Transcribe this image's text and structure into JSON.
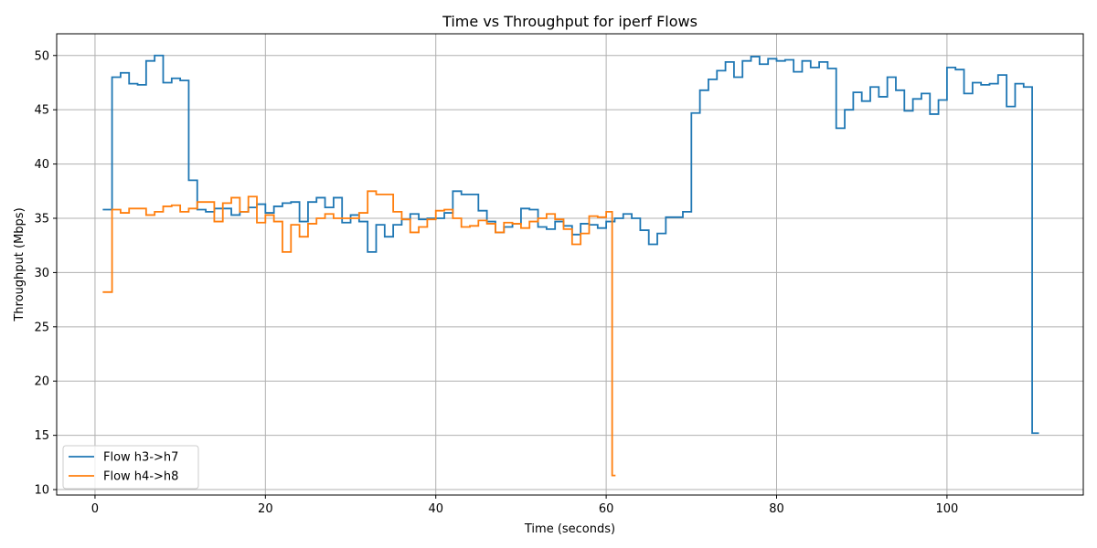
{
  "chart_data": {
    "type": "line",
    "drawstyle": "steps-post",
    "title": "Time vs Throughput for iperf Flows",
    "xlabel": "Time (seconds)",
    "ylabel": "Throughput (Mbps)",
    "xlim": [
      -4.5,
      116
    ],
    "ylim": [
      9.5,
      52
    ],
    "xticks": [
      0,
      20,
      40,
      60,
      80,
      100
    ],
    "yticks": [
      10,
      15,
      20,
      25,
      30,
      35,
      40,
      45,
      50
    ],
    "grid": true,
    "legend_position": "lower-left",
    "series": [
      {
        "name": "Flow h3->h7",
        "color": "#1f77b4",
        "x": [
          1,
          2,
          3,
          4,
          5,
          6,
          7,
          8,
          9,
          10,
          11,
          12,
          13,
          14,
          15,
          16,
          17,
          18,
          19,
          20,
          21,
          22,
          23,
          24,
          25,
          26,
          27,
          28,
          29,
          30,
          31,
          32,
          33,
          34,
          35,
          36,
          37,
          38,
          39,
          40,
          41,
          42,
          43,
          44,
          45,
          46,
          47,
          48,
          49,
          50,
          51,
          52,
          53,
          54,
          55,
          56,
          57,
          58,
          59,
          60,
          61,
          62,
          63,
          64,
          65,
          66,
          67,
          68,
          69,
          70,
          71,
          72,
          73,
          74,
          75,
          76,
          77,
          78,
          79,
          80,
          81,
          82,
          83,
          84,
          85,
          86,
          87,
          88,
          89,
          90,
          91,
          92,
          93,
          94,
          95,
          96,
          97,
          98,
          99,
          100,
          101,
          102,
          103,
          104,
          105,
          106,
          107,
          108,
          109,
          110,
          110.7
        ],
        "y": [
          35.8,
          48.0,
          48.4,
          47.4,
          47.3,
          49.5,
          50.0,
          47.5,
          47.9,
          47.7,
          38.5,
          35.8,
          35.6,
          35.9,
          35.9,
          35.3,
          35.6,
          36.0,
          36.3,
          35.5,
          36.1,
          36.4,
          36.5,
          34.7,
          36.5,
          36.9,
          36.0,
          36.9,
          34.6,
          35.3,
          34.7,
          31.9,
          34.4,
          33.3,
          34.4,
          34.9,
          35.4,
          34.9,
          35.0,
          35.0,
          35.5,
          37.5,
          37.2,
          37.2,
          35.7,
          34.7,
          33.7,
          34.2,
          34.5,
          35.9,
          35.8,
          34.2,
          34.0,
          34.7,
          34.3,
          33.5,
          34.5,
          34.4,
          34.1,
          34.7,
          35.0,
          35.4,
          35.0,
          33.9,
          32.6,
          33.6,
          35.1,
          35.1,
          35.6,
          44.7,
          46.8,
          47.8,
          48.6,
          49.4,
          48.0,
          49.5,
          49.9,
          49.2,
          49.7,
          49.5,
          49.6,
          48.5,
          49.5,
          48.9,
          49.4,
          48.8,
          43.3,
          45.0,
          46.6,
          45.8,
          47.1,
          46.2,
          48.0,
          46.8,
          44.9,
          46.0,
          46.5,
          44.6,
          45.9,
          48.9,
          48.7,
          46.5,
          47.5,
          47.3,
          47.4,
          48.2,
          45.3,
          47.4,
          47.1,
          15.2,
          15.2
        ]
      },
      {
        "name": "Flow h4->h8",
        "color": "#ff7f0e",
        "x": [
          1,
          2,
          3,
          4,
          5,
          6,
          7,
          8,
          9,
          10,
          11,
          12,
          13,
          14,
          15,
          16,
          17,
          18,
          19,
          20,
          21,
          22,
          23,
          24,
          25,
          26,
          27,
          28,
          29,
          30,
          31,
          32,
          33,
          34,
          35,
          36,
          37,
          38,
          39,
          40,
          41,
          42,
          43,
          44,
          45,
          46,
          47,
          48,
          49,
          50,
          51,
          52,
          53,
          54,
          55,
          56,
          57,
          58,
          59,
          60,
          60.7,
          61
        ],
        "y": [
          28.2,
          35.8,
          35.5,
          35.9,
          35.9,
          35.3,
          35.6,
          36.1,
          36.2,
          35.6,
          35.9,
          36.5,
          36.5,
          34.7,
          36.4,
          36.9,
          35.6,
          37.0,
          34.6,
          35.3,
          34.7,
          31.9,
          34.4,
          33.3,
          34.5,
          35.0,
          35.4,
          35.0,
          35.0,
          35.0,
          35.5,
          37.5,
          37.2,
          37.2,
          35.6,
          34.9,
          33.7,
          34.2,
          34.9,
          35.7,
          35.8,
          35.0,
          34.2,
          34.3,
          34.8,
          34.5,
          33.7,
          34.6,
          34.5,
          34.1,
          34.7,
          35.0,
          35.4,
          34.9,
          34.0,
          32.6,
          33.6,
          35.2,
          35.1,
          35.6,
          11.3,
          11.3
        ]
      }
    ]
  }
}
